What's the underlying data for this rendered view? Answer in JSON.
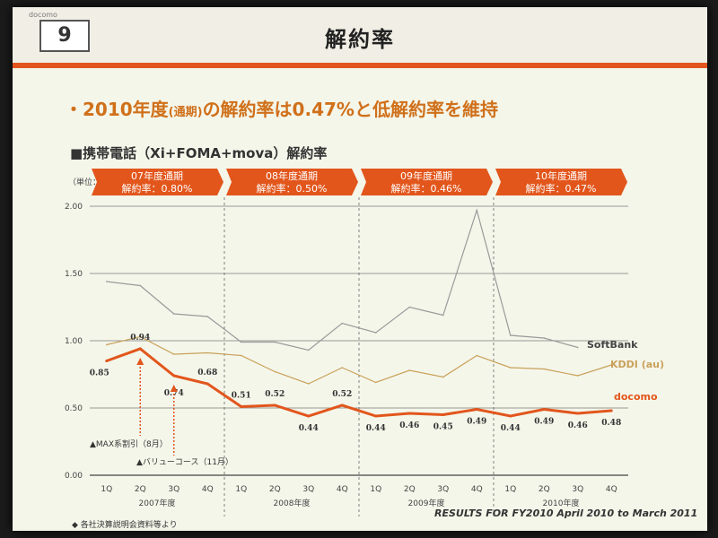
{
  "slide": {
    "page_number": "9",
    "logo_text": "docomo",
    "title": "解約率",
    "bullet_main": "・2010年度",
    "bullet_small": "(通期)",
    "bullet_rest": "の解約率は0.47%と低解約率を維持",
    "subtitle": "■携帯電話（Xi+FOMA+mova）解約率",
    "footnote": "◆ 各社決算説明会資料等より",
    "results": "RESULTS FOR FY2010 April 2010 to March 2011"
  },
  "chart_data": {
    "type": "line",
    "ylabel": "（単位：%）",
    "ylim": [
      0,
      2.0
    ],
    "yticks": [
      "0.00",
      "0.50",
      "1.00",
      "1.50",
      "2.00"
    ],
    "categories": [
      "1Q",
      "2Q",
      "3Q",
      "4Q",
      "1Q",
      "2Q",
      "3Q",
      "4Q",
      "1Q",
      "2Q",
      "3Q",
      "4Q",
      "1Q",
      "2Q",
      "3Q",
      "4Q"
    ],
    "years": [
      "2007年度",
      "2008年度",
      "2009年度",
      "2010年度"
    ],
    "periods": [
      {
        "line1": "07年度通期",
        "line2": "解約率：0.80%"
      },
      {
        "line1": "08年度通期",
        "line2": "解約率：0.50%"
      },
      {
        "line1": "09年度通期",
        "line2": "解約率：0.46%"
      },
      {
        "line1": "10年度通期",
        "line2": "解約率：0.47%"
      }
    ],
    "series": [
      {
        "name": "SoftBank",
        "color": "#9a9a9a",
        "values": [
          1.44,
          1.41,
          1.2,
          1.18,
          0.99,
          0.99,
          0.93,
          1.13,
          1.06,
          1.25,
          1.19,
          1.97,
          1.04,
          1.02,
          0.95,
          null
        ]
      },
      {
        "name": "KDDI (au)",
        "color": "#c9a15a",
        "values": [
          0.97,
          1.03,
          0.9,
          0.91,
          0.89,
          0.77,
          0.68,
          0.8,
          0.69,
          0.78,
          0.73,
          0.89,
          0.8,
          0.79,
          0.74,
          0.82
        ]
      },
      {
        "name": "docomo",
        "color": "#e2561c",
        "values": [
          0.85,
          0.94,
          0.74,
          0.68,
          0.51,
          0.52,
          0.44,
          0.52,
          0.44,
          0.46,
          0.45,
          0.49,
          0.44,
          0.49,
          0.46,
          0.48
        ]
      }
    ],
    "docomo_labels": [
      "0.85",
      "0.94",
      "0.74",
      "0.68",
      "0.51",
      "0.52",
      "0.44",
      "0.52",
      "0.44",
      "0.46",
      "0.45",
      "0.49",
      "0.44",
      "0.49",
      "0.46",
      "0.48"
    ],
    "annotations": [
      {
        "text": "▲MAX系割引（8月）",
        "index": 1
      },
      {
        "text": "▲バリューコース（11月）",
        "index": 2
      }
    ],
    "grid": true
  }
}
